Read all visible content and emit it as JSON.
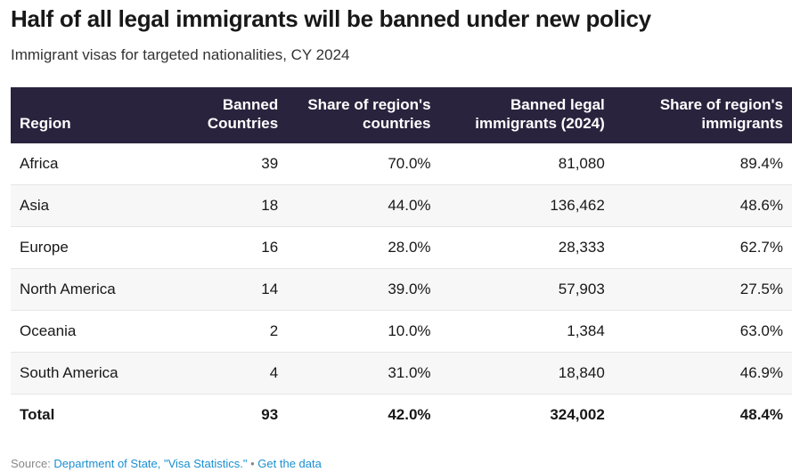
{
  "title": "Half of all legal immigrants will be banned under new policy",
  "subtitle": "Immigrant visas for targeted nationalities, CY 2024",
  "chart_data": {
    "type": "table",
    "columns": [
      "Region",
      "Banned Countries",
      "Share of region's countries",
      "Banned legal immigrants (2024)",
      "Share of region's immigrants"
    ],
    "rows": [
      [
        "Africa",
        "39",
        "70.0%",
        "81,080",
        "89.4%"
      ],
      [
        "Asia",
        "18",
        "44.0%",
        "136,462",
        "48.6%"
      ],
      [
        "Europe",
        "16",
        "28.0%",
        "28,333",
        "62.7%"
      ],
      [
        "North America",
        "14",
        "39.0%",
        "57,903",
        "27.5%"
      ],
      [
        "Oceania",
        "2",
        "10.0%",
        "1,384",
        "63.0%"
      ],
      [
        "South America",
        "4",
        "31.0%",
        "18,840",
        "46.9%"
      ]
    ],
    "total": [
      "Total",
      "93",
      "42.0%",
      "324,002",
      "48.4%"
    ]
  },
  "colors": {
    "header_bg": "#29233d",
    "link": "#1a8fd1",
    "row_alt": "#f7f7f7"
  },
  "footer": {
    "source_label": "Source: ",
    "source_link": "Department of State, \"Visa Statistics.\"",
    "separator": " • ",
    "get_data": "Get the data"
  }
}
